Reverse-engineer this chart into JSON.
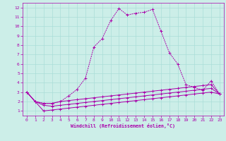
{
  "xlabel": "Windchill (Refroidissement éolien,°C)",
  "xlim": [
    -0.5,
    23.5
  ],
  "ylim": [
    0.5,
    12.5
  ],
  "xticks": [
    0,
    1,
    2,
    3,
    4,
    5,
    6,
    7,
    8,
    9,
    10,
    11,
    12,
    13,
    14,
    15,
    16,
    17,
    18,
    19,
    20,
    21,
    22,
    23
  ],
  "yticks": [
    1,
    2,
    3,
    4,
    5,
    6,
    7,
    8,
    9,
    10,
    11,
    12
  ],
  "bg_color": "#cceee8",
  "line_color": "#aa00aa",
  "grid_color": "#aaddd8",
  "line_main_x": [
    0,
    1,
    2,
    3,
    4,
    5,
    6,
    7,
    8,
    9,
    10,
    11,
    12,
    13,
    14,
    15,
    16,
    17,
    18,
    19,
    20,
    21,
    22,
    23
  ],
  "line_main_y": [
    3.0,
    2.0,
    1.8,
    1.8,
    2.0,
    2.6,
    3.3,
    4.5,
    7.8,
    8.7,
    10.6,
    11.9,
    11.2,
    11.4,
    11.5,
    11.8,
    9.5,
    7.2,
    6.0,
    3.8,
    3.5,
    3.2,
    4.2,
    2.8
  ],
  "line2_x": [
    0,
    1,
    2,
    3,
    4,
    5,
    6,
    7,
    8,
    9,
    10,
    11,
    12,
    13,
    14,
    15,
    16,
    17,
    18,
    19,
    20,
    21,
    22,
    23
  ],
  "line2_y": [
    3.0,
    2.0,
    1.8,
    1.8,
    2.0,
    2.1,
    2.2,
    2.3,
    2.4,
    2.5,
    2.6,
    2.7,
    2.8,
    2.9,
    3.0,
    3.1,
    3.2,
    3.3,
    3.4,
    3.5,
    3.6,
    3.7,
    3.8,
    2.8
  ],
  "line3_x": [
    0,
    1,
    2,
    3,
    4,
    5,
    6,
    7,
    8,
    9,
    10,
    11,
    12,
    13,
    14,
    15,
    16,
    17,
    18,
    19,
    20,
    21,
    22,
    23
  ],
  "line3_y": [
    3.0,
    2.0,
    1.6,
    1.5,
    1.6,
    1.7,
    1.8,
    1.9,
    2.0,
    2.1,
    2.2,
    2.3,
    2.4,
    2.5,
    2.6,
    2.7,
    2.8,
    2.9,
    3.0,
    3.1,
    3.2,
    3.3,
    3.4,
    2.8
  ],
  "line4_x": [
    0,
    1,
    2,
    3,
    4,
    5,
    6,
    7,
    8,
    9,
    10,
    11,
    12,
    13,
    14,
    15,
    16,
    17,
    18,
    19,
    20,
    21,
    22,
    23
  ],
  "line4_y": [
    3.0,
    2.0,
    1.0,
    1.1,
    1.2,
    1.3,
    1.4,
    1.5,
    1.6,
    1.7,
    1.8,
    1.9,
    2.0,
    2.1,
    2.2,
    2.3,
    2.4,
    2.5,
    2.6,
    2.7,
    2.8,
    2.9,
    3.0,
    2.8
  ]
}
